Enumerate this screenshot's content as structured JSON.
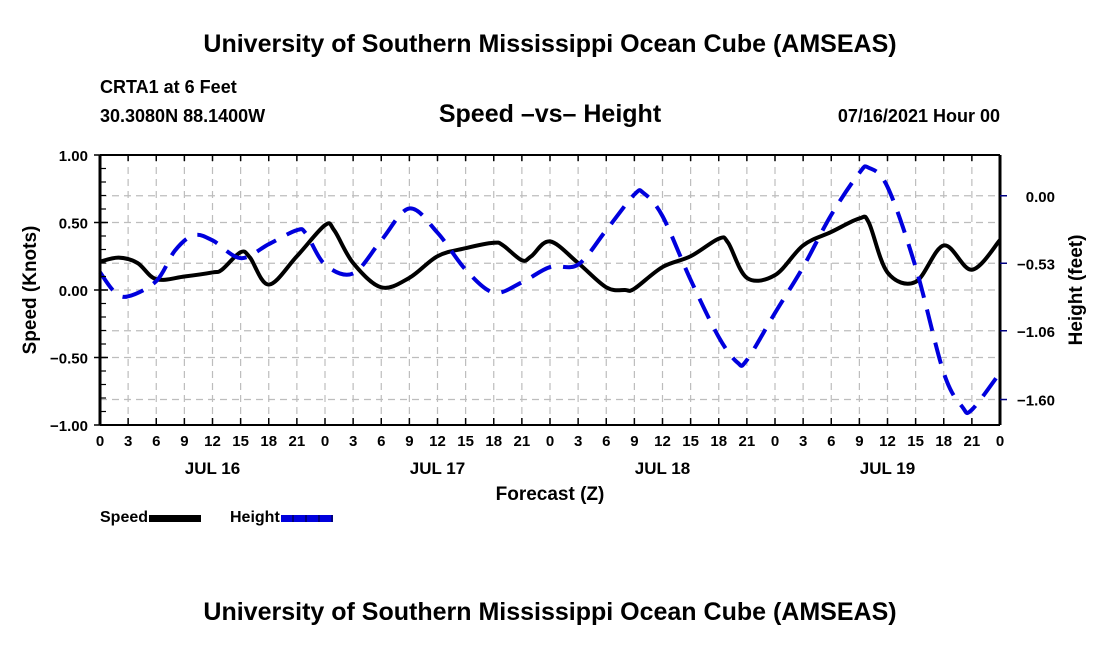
{
  "header": {
    "title": "University of Southern Mississippi Ocean Cube (AMSEAS)",
    "station": "CRTA1 at 6 Feet",
    "coords": "30.3080N  88.1400W",
    "subtitle": "Speed –vs– Height",
    "datetime": "07/16/2021 Hour 00"
  },
  "footer": {
    "title": "University of Southern Mississippi Ocean Cube (AMSEAS)"
  },
  "legend": [
    {
      "label": "Speed",
      "color": "#000000",
      "style": "solid"
    },
    {
      "label": "Height",
      "color": "#0000dd",
      "style": "dashed"
    }
  ],
  "chart_data": {
    "type": "line",
    "title": "Speed -vs- Height",
    "xlabel": "Forecast (Z)",
    "ylabel": "Speed (Knots)",
    "y2label": "Height (feet)",
    "xlim": [
      0,
      96
    ],
    "ylim": [
      -1.0,
      1.0
    ],
    "y2lim": [
      -1.8,
      0.32
    ],
    "yticks": [
      1.0,
      0.5,
      0.0,
      -0.5,
      -1.0
    ],
    "ytick_labels": [
      "1.00",
      "0.50",
      "0.00",
      "−0.50",
      "−1.00"
    ],
    "y2ticks": [
      0.0,
      -0.53,
      -1.06,
      -1.6
    ],
    "y2tick_labels": [
      "0.00",
      "−0.53",
      "−1.06",
      "−1.60"
    ],
    "xticks": [
      0,
      3,
      6,
      9,
      12,
      15,
      18,
      21,
      24,
      27,
      30,
      33,
      36,
      39,
      42,
      45,
      48,
      51,
      54,
      57,
      60,
      63,
      66,
      69,
      72,
      75,
      78,
      81,
      84,
      87,
      90,
      93,
      96
    ],
    "xtick_labels": [
      "0",
      "3",
      "6",
      "9",
      "12",
      "15",
      "18",
      "21",
      "0",
      "3",
      "6",
      "9",
      "12",
      "15",
      "18",
      "21",
      "0",
      "3",
      "6",
      "9",
      "12",
      "15",
      "18",
      "21",
      "0",
      "3",
      "6",
      "9",
      "12",
      "15",
      "18",
      "21",
      "0"
    ],
    "day_labels": [
      {
        "hour": 12,
        "label": "JUL 16"
      },
      {
        "hour": 36,
        "label": "JUL 17"
      },
      {
        "hour": 60,
        "label": "JUL 18"
      },
      {
        "hour": 84,
        "label": "JUL 19"
      }
    ],
    "grid": true,
    "legend_position": "bottom-left",
    "series": [
      {
        "name": "Speed",
        "axis": "left",
        "color": "#000000",
        "x": [
          0,
          2,
          4,
          6,
          9,
          12,
          13,
          15,
          16,
          18,
          21,
          24,
          25,
          27,
          30,
          33,
          36,
          39,
          42,
          43,
          45,
          46,
          48,
          51,
          54,
          56,
          57,
          60,
          63,
          66,
          67,
          69,
          72,
          75,
          78,
          81,
          82,
          84,
          87,
          90,
          93,
          96
        ],
        "y": [
          0.21,
          0.24,
          0.2,
          0.08,
          0.1,
          0.13,
          0.15,
          0.28,
          0.24,
          0.04,
          0.25,
          0.48,
          0.44,
          0.2,
          0.02,
          0.09,
          0.25,
          0.31,
          0.35,
          0.33,
          0.22,
          0.25,
          0.36,
          0.2,
          0.02,
          0.0,
          0.01,
          0.17,
          0.25,
          0.38,
          0.35,
          0.09,
          0.11,
          0.33,
          0.43,
          0.53,
          0.5,
          0.13,
          0.06,
          0.33,
          0.15,
          0.37
        ]
      },
      {
        "name": "Height",
        "axis": "right",
        "color": "#0000dd",
        "x": [
          0,
          1.5,
          3,
          6,
          8,
          10,
          12,
          15,
          18,
          21,
          22,
          24,
          27,
          30,
          33,
          36,
          39,
          42,
          45,
          48,
          51,
          54,
          57,
          58,
          60,
          63,
          66,
          68,
          69,
          72,
          75,
          78,
          81,
          82,
          84,
          87,
          90,
          92,
          93,
          96
        ],
        "y": [
          -0.6,
          -0.75,
          -0.79,
          -0.67,
          -0.43,
          -0.31,
          -0.35,
          -0.49,
          -0.38,
          -0.27,
          -0.3,
          -0.54,
          -0.61,
          -0.35,
          -0.1,
          -0.29,
          -0.58,
          -0.76,
          -0.68,
          -0.56,
          -0.54,
          -0.27,
          0.01,
          0.02,
          -0.16,
          -0.66,
          -1.11,
          -1.31,
          -1.29,
          -0.92,
          -0.56,
          -0.15,
          0.18,
          0.22,
          0.07,
          -0.56,
          -1.39,
          -1.66,
          -1.68,
          -1.39
        ]
      }
    ]
  }
}
